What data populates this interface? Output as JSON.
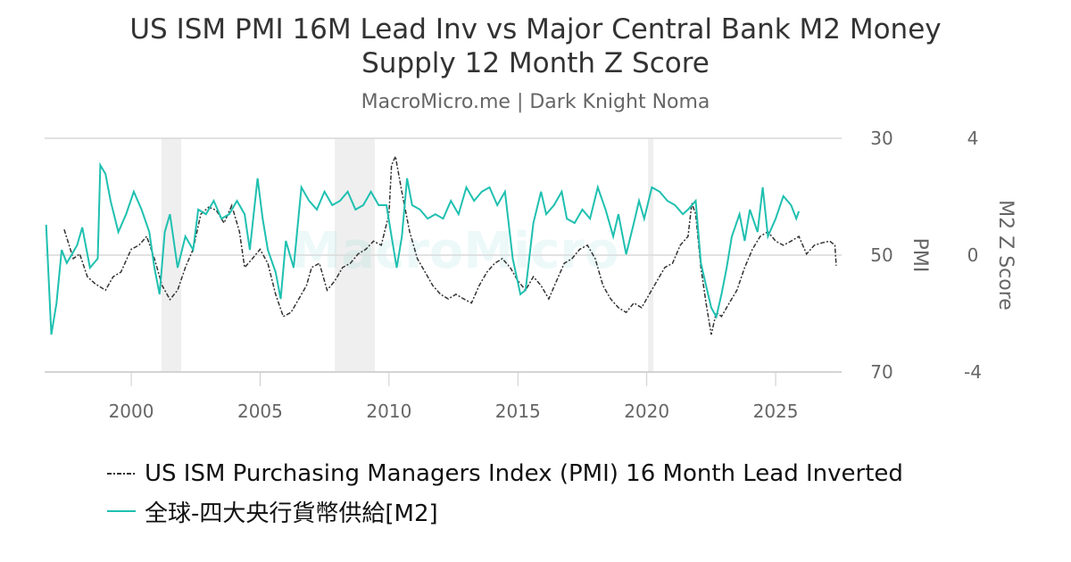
{
  "chart_data": {
    "type": "line",
    "title": "US ISM PMI 16M Lead Inv vs Major Central Bank M2 Money Supply 12 Month Z Score",
    "subtitle": "MacroMicro.me | Dark Knight Noma",
    "watermark": "MacroMicro",
    "y_label": "PMI",
    "y2_label": "M2 Z Score",
    "xlim": [
      1996.64,
      2027.56
    ],
    "xticks": [
      2000,
      2005,
      2010,
      2015,
      2020,
      2025
    ],
    "ylim": [
      70,
      30
    ],
    "yticks": [
      30,
      50,
      70
    ],
    "y2lim": [
      -4,
      4
    ],
    "y2ticks": [
      4,
      0,
      -4
    ],
    "grid": true,
    "shaded_periods": [
      [
        2001.17,
        2001.94
      ],
      [
        2007.9,
        2009.45
      ],
      [
        2020.05,
        2020.26
      ]
    ],
    "series": [
      {
        "name": "US ISM Purchasing Managers Index (PMI) 16 Month Lead Inverted",
        "color": "#333333",
        "dashed": true,
        "x": [
          1997.4,
          1997.75,
          1998.0,
          1998.3,
          1998.6,
          1999.0,
          1999.3,
          1999.6,
          2000.0,
          2000.3,
          2000.6,
          2000.9,
          2001.2,
          2001.5,
          2001.8,
          2002.1,
          2002.4,
          2002.7,
          2003.0,
          2003.3,
          2003.6,
          2003.9,
          2004.2,
          2004.4,
          2004.7,
          2005.0,
          2005.3,
          2005.6,
          2005.9,
          2006.2,
          2006.5,
          2006.8,
          2007.0,
          2007.3,
          2007.6,
          2007.9,
          2008.2,
          2008.5,
          2008.8,
          2009.1,
          2009.4,
          2009.7,
          2010.0,
          2010.1,
          2010.25,
          2010.5,
          2010.8,
          2011.1,
          2011.4,
          2011.7,
          2012.0,
          2012.3,
          2012.6,
          2012.9,
          2013.2,
          2013.5,
          2013.8,
          2014.1,
          2014.4,
          2014.7,
          2015.0,
          2015.3,
          2015.6,
          2015.9,
          2016.2,
          2016.5,
          2016.8,
          2017.1,
          2017.4,
          2017.7,
          2018.0,
          2018.3,
          2018.6,
          2018.9,
          2019.2,
          2019.5,
          2019.8,
          2020.1,
          2020.4,
          2020.7,
          2021.0,
          2021.3,
          2021.6,
          2021.75,
          2021.9,
          2022.1,
          2022.3,
          2022.5,
          2022.7,
          2022.9,
          2023.2,
          2023.5,
          2023.8,
          2024.1,
          2024.4,
          2024.7,
          2025.0,
          2025.3,
          2025.6,
          2025.9,
          2026.2,
          2026.5,
          2026.8,
          2027.1,
          2027.3,
          2027.35
        ],
        "values": [
          45.6,
          50.6,
          49.8,
          53.7,
          54.9,
          56,
          53.7,
          52.9,
          49,
          48.3,
          46.8,
          50.6,
          55.2,
          57.6,
          56,
          52.1,
          49,
          43,
          41.8,
          42.3,
          44.5,
          41.5,
          46,
          52.1,
          50.6,
          49,
          51.4,
          56.7,
          60.5,
          59.8,
          57.5,
          55.2,
          52.1,
          51.4,
          56,
          54.4,
          52.1,
          51.4,
          49.8,
          49,
          47.6,
          48.3,
          43,
          34.6,
          33.1,
          39.2,
          46,
          50.6,
          52.9,
          55.2,
          56.7,
          57.5,
          56.7,
          57.5,
          58.2,
          55.2,
          52.9,
          51.4,
          50.6,
          52.1,
          54.4,
          56,
          53.7,
          55.2,
          57.5,
          54.4,
          51.4,
          50.6,
          49,
          48.3,
          50.6,
          55.2,
          57.5,
          59,
          59.8,
          58.2,
          59,
          56.7,
          54.4,
          52.1,
          51.4,
          48.3,
          46.8,
          41.1,
          43,
          52.1,
          58.2,
          63.6,
          59.8,
          60.5,
          58.2,
          56,
          52.1,
          49,
          46.8,
          46,
          47.6,
          48.3,
          47.6,
          46.8,
          49.8,
          48.3,
          47.9,
          47.6,
          48.3,
          51.8
        ]
      },
      {
        "name": "全球-四大央行貨幣供給[M2]",
        "color": "#1fc0b0",
        "axis": "y2",
        "x": [
          1996.7,
          1996.9,
          1997.1,
          1997.3,
          1997.5,
          1997.7,
          1997.9,
          1998.1,
          1998.4,
          1998.7,
          1998.8,
          1999.0,
          1999.2,
          1999.5,
          1999.8,
          2000.1,
          2000.4,
          2000.7,
          2000.9,
          2001.1,
          2001.3,
          2001.5,
          2001.8,
          2002.1,
          2002.4,
          2002.6,
          2002.9,
          2003.2,
          2003.5,
          2003.8,
          2004.1,
          2004.4,
          2004.6,
          2004.9,
          2005.1,
          2005.3,
          2005.6,
          2005.8,
          2006.0,
          2006.3,
          2006.6,
          2006.9,
          2007.2,
          2007.5,
          2007.8,
          2008.1,
          2008.4,
          2008.7,
          2009.0,
          2009.3,
          2009.6,
          2009.9,
          2010.1,
          2010.3,
          2010.5,
          2010.7,
          2010.9,
          2011.2,
          2011.5,
          2011.8,
          2012.1,
          2012.4,
          2012.7,
          2013.0,
          2013.3,
          2013.6,
          2013.9,
          2014.2,
          2014.5,
          2014.8,
          2015.1,
          2015.3,
          2015.6,
          2015.9,
          2016.1,
          2016.4,
          2016.7,
          2016.9,
          2017.2,
          2017.5,
          2017.8,
          2018.1,
          2018.4,
          2018.7,
          2018.9,
          2019.2,
          2019.5,
          2019.7,
          2019.9,
          2020.2,
          2020.5,
          2020.8,
          2021.1,
          2021.4,
          2021.6,
          2021.9,
          2022.1,
          2022.3,
          2022.5,
          2022.7,
          2022.9,
          2023.1,
          2023.3,
          2023.6,
          2023.8,
          2024.0,
          2024.3,
          2024.5,
          2024.7,
          2025.0,
          2025.3,
          2025.6,
          2025.8,
          2025.9
        ],
        "values": [
          1.04,
          -2.72,
          -1.65,
          0.18,
          -0.27,
          0.03,
          0.34,
          0.95,
          -0.43,
          -0.12,
          3.08,
          2.78,
          1.86,
          0.79,
          1.4,
          2.17,
          1.56,
          0.79,
          -0.43,
          -1.34,
          0.79,
          1.4,
          -0.43,
          0.64,
          0.18,
          1.56,
          1.4,
          1.86,
          1.25,
          1.4,
          1.86,
          1.4,
          0.18,
          2.63,
          1.25,
          0.18,
          -0.58,
          -1.5,
          0.49,
          -0.43,
          2.32,
          1.86,
          1.56,
          2.17,
          1.71,
          1.86,
          2.17,
          1.56,
          1.71,
          2.17,
          1.71,
          1.71,
          0.64,
          -0.43,
          0.64,
          2.63,
          1.71,
          1.56,
          1.25,
          1.4,
          1.25,
          1.86,
          1.4,
          2.32,
          1.86,
          2.17,
          2.32,
          1.71,
          2.17,
          -0.12,
          -1.34,
          -1.19,
          1.1,
          2.17,
          1.4,
          1.71,
          2.17,
          1.25,
          1.1,
          1.56,
          1.25,
          2.32,
          1.56,
          0.64,
          1.4,
          0.03,
          1.1,
          1.86,
          1.25,
          2.32,
          2.17,
          1.86,
          1.71,
          1.4,
          1.56,
          1.86,
          -0.27,
          -1.04,
          -1.8,
          -2.11,
          -1.34,
          -0.43,
          0.64,
          1.4,
          0.49,
          1.56,
          0.79,
          2.32,
          0.64,
          1.25,
          2.02,
          1.71,
          1.25,
          1.5
        ]
      }
    ]
  }
}
